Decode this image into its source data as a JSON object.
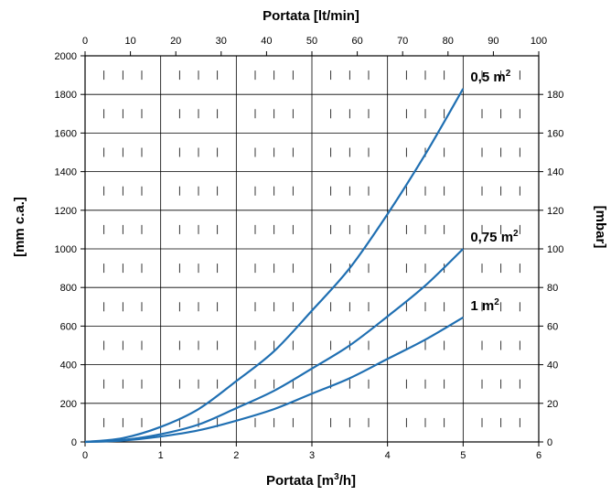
{
  "chart_data": {
    "type": "line",
    "title": "",
    "xlabel": "Portata [m",
    "xlabel_sup": "3",
    "xlabel_end": "/h]",
    "xlim": [
      0,
      6
    ],
    "xticks": [
      0,
      1,
      2,
      3,
      4,
      5,
      6
    ],
    "ylabel": "[mm c.a.]",
    "ylim": [
      0,
      2000
    ],
    "yticks": [
      0,
      200,
      400,
      600,
      800,
      1000,
      1200,
      1400,
      1600,
      1800,
      2000
    ],
    "x2label": "Portata [lt/min]",
    "x2lim": [
      0,
      100
    ],
    "x2ticks": [
      0,
      10,
      20,
      30,
      40,
      50,
      60,
      70,
      80,
      90,
      100
    ],
    "y2label": "[mbar]",
    "y2lim": [
      0,
      200
    ],
    "y2ticks": [
      0,
      20,
      40,
      60,
      80,
      100,
      120,
      140,
      160,
      180
    ],
    "grid": true,
    "line_color": "#1f6fb2",
    "series": [
      {
        "name": "0,5 m",
        "name_sup": "2",
        "x": [
          0,
          0.5,
          1,
          1.5,
          2,
          2.5,
          3,
          3.5,
          4,
          4.5,
          5
        ],
        "y": [
          0,
          20,
          78,
          170,
          315,
          470,
          680,
          900,
          1180,
          1490,
          1830
        ]
      },
      {
        "name": "0,75 m",
        "name_sup": "2",
        "x": [
          0,
          0.5,
          1,
          1.5,
          2,
          2.5,
          3,
          3.5,
          4,
          4.5,
          5
        ],
        "y": [
          0,
          10,
          40,
          90,
          175,
          265,
          380,
          500,
          650,
          810,
          1000
        ]
      },
      {
        "name": "1 m",
        "name_sup": "2",
        "x": [
          0,
          0.5,
          1,
          1.5,
          2,
          2.5,
          3,
          3.5,
          4,
          4.5,
          5
        ],
        "y": [
          0,
          7,
          28,
          60,
          110,
          170,
          250,
          330,
          430,
          530,
          645
        ]
      }
    ]
  }
}
